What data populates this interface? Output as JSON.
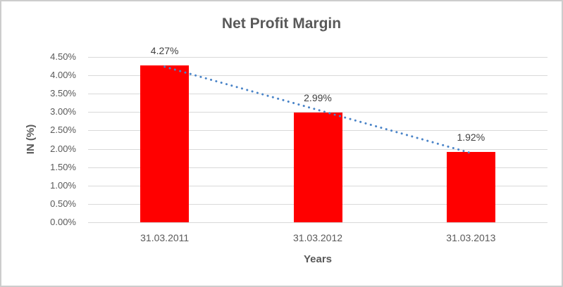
{
  "chart_data": {
    "type": "bar",
    "title": "Net Profit Margin",
    "xlabel": "Years",
    "ylabel": "IN (%)",
    "categories": [
      "31.03.2011",
      "31.03.2012",
      "31.03.2013"
    ],
    "values": [
      4.27,
      2.99,
      1.92
    ],
    "data_labels": [
      "4.27%",
      "2.99%",
      "1.92%"
    ],
    "ylim": [
      0,
      4.5
    ],
    "ytick_values": [
      0,
      0.5,
      1,
      1.5,
      2,
      2.5,
      3,
      3.5,
      4,
      4.5
    ],
    "ytick_labels": [
      "0.00%",
      "0.50%",
      "1.00%",
      "1.50%",
      "2.00%",
      "2.50%",
      "3.00%",
      "3.50%",
      "4.00%",
      "4.50%"
    ],
    "grid": true,
    "legend": "none",
    "bar_color": "#ff0000",
    "gridline_color": "#d9d9d9",
    "text_color": "#595959",
    "trendline": {
      "type": "linear",
      "style": "dotted",
      "color": "#4a84c8"
    }
  }
}
